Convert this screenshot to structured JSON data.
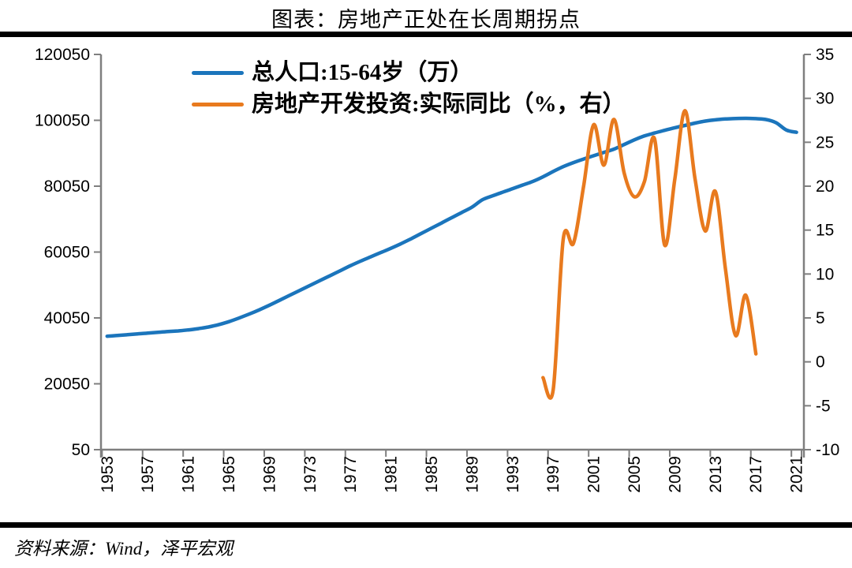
{
  "title": "图表：房地产正处在长周期拐点",
  "source": "资料来源：Wind，泽平宏观",
  "colors": {
    "population_line": "#1b75bc",
    "investment_line": "#e87a1e",
    "axis": "#7f7f7f",
    "tick_text": "#000000",
    "divider_rule": "#000000",
    "background": "#ffffff"
  },
  "legend": {
    "items": [
      {
        "label": "总人口:15-64岁（万）",
        "color": "#1b75bc"
      },
      {
        "label": "房地产开发投资:实际同比（%，右）",
        "color": "#e87a1e"
      }
    ]
  },
  "chart_data": {
    "type": "line",
    "title": "图表：房地产正处在长周期拐点",
    "xlabel": "",
    "grid": false,
    "legend_position": "top-inside",
    "x_tick_labels": [
      "1953",
      "1957",
      "1961",
      "1965",
      "1969",
      "1973",
      "1977",
      "1981",
      "1985",
      "1989",
      "1993",
      "1997",
      "2001",
      "2005",
      "2009",
      "2013",
      "2017",
      "2021"
    ],
    "left_axis": {
      "min": 50,
      "max": 120050,
      "step": 20000,
      "tick_labels": [
        "120050",
        "100050",
        "80050",
        "60050",
        "40050",
        "20050",
        "50"
      ]
    },
    "right_axis": {
      "min": -10,
      "max": 35,
      "step": 5,
      "tick_labels": [
        "35",
        "30",
        "25",
        "20",
        "15",
        "10",
        "5",
        "0",
        "-5",
        "-10"
      ]
    },
    "series": [
      {
        "name": "总人口:15-64岁（万）",
        "axis": "left",
        "color": "#1b75bc",
        "points": [
          [
            1953,
            34500
          ],
          [
            1954,
            34700
          ],
          [
            1955,
            34950
          ],
          [
            1956,
            35200
          ],
          [
            1957,
            35450
          ],
          [
            1958,
            35700
          ],
          [
            1959,
            35900
          ],
          [
            1960,
            36100
          ],
          [
            1961,
            36400
          ],
          [
            1962,
            36800
          ],
          [
            1963,
            37300
          ],
          [
            1964,
            38000
          ],
          [
            1965,
            38900
          ],
          [
            1966,
            40000
          ],
          [
            1967,
            41200
          ],
          [
            1968,
            42500
          ],
          [
            1969,
            43900
          ],
          [
            1970,
            45400
          ],
          [
            1971,
            46900
          ],
          [
            1972,
            48400
          ],
          [
            1973,
            49900
          ],
          [
            1974,
            51400
          ],
          [
            1975,
            52900
          ],
          [
            1976,
            54400
          ],
          [
            1977,
            55900
          ],
          [
            1978,
            57300
          ],
          [
            1979,
            58600
          ],
          [
            1980,
            59900
          ],
          [
            1981,
            61200
          ],
          [
            1982,
            62600
          ],
          [
            1983,
            64100
          ],
          [
            1984,
            65700
          ],
          [
            1985,
            67300
          ],
          [
            1986,
            68900
          ],
          [
            1987,
            70500
          ],
          [
            1988,
            72100
          ],
          [
            1989,
            73700
          ],
          [
            1990,
            75900
          ],
          [
            1991,
            77100
          ],
          [
            1992,
            78200
          ],
          [
            1993,
            79300
          ],
          [
            1994,
            80400
          ],
          [
            1995,
            81500
          ],
          [
            1996,
            82900
          ],
          [
            1997,
            84500
          ],
          [
            1998,
            86000
          ],
          [
            1999,
            87200
          ],
          [
            2000,
            88300
          ],
          [
            2001,
            89300
          ],
          [
            2002,
            90300
          ],
          [
            2003,
            91300
          ],
          [
            2004,
            92700
          ],
          [
            2005,
            94100
          ],
          [
            2006,
            95300
          ],
          [
            2007,
            96200
          ],
          [
            2008,
            97000
          ],
          [
            2009,
            97800
          ],
          [
            2010,
            98500
          ],
          [
            2011,
            99200
          ],
          [
            2012,
            99800
          ],
          [
            2013,
            100200
          ],
          [
            2014,
            100450
          ],
          [
            2015,
            100600
          ],
          [
            2016,
            100650
          ],
          [
            2017,
            100550
          ],
          [
            2018,
            100300
          ],
          [
            2019,
            99300
          ],
          [
            2020,
            97100
          ],
          [
            2021,
            96400
          ]
        ]
      },
      {
        "name": "房地产开发投资:实际同比（%，右）",
        "axis": "right",
        "color": "#e87a1e",
        "points": [
          [
            1996,
            -1.8
          ],
          [
            1997,
            -3.2
          ],
          [
            1998,
            14.0
          ],
          [
            1999,
            13.5
          ],
          [
            2000,
            20.0
          ],
          [
            2001,
            27.0
          ],
          [
            2002,
            22.4
          ],
          [
            2003,
            27.6
          ],
          [
            2004,
            21.5
          ],
          [
            2005,
            18.8
          ],
          [
            2006,
            20.5
          ],
          [
            2007,
            25.4
          ],
          [
            2008,
            13.3
          ],
          [
            2009,
            20.8
          ],
          [
            2010,
            28.6
          ],
          [
            2011,
            20.8
          ],
          [
            2012,
            14.9
          ],
          [
            2013,
            19.4
          ],
          [
            2014,
            10.5
          ],
          [
            2015,
            3.0
          ],
          [
            2016,
            7.6
          ],
          [
            2017,
            0.9
          ]
        ]
      }
    ]
  }
}
